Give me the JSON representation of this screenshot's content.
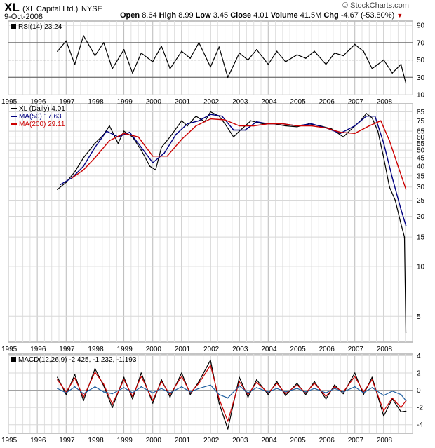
{
  "header": {
    "symbol": "XL",
    "company": "(XL Capital Ltd.)",
    "exchange": "NYSE",
    "date": "9-Oct-2008",
    "logo": "© StockCharts.com",
    "open_label": "Open",
    "open": "8.64",
    "high_label": "High",
    "high": "8.99",
    "low_label": "Low",
    "low": "3.45",
    "close_label": "Close",
    "close": "4.01",
    "volume_label": "Volume",
    "volume": "41.5M",
    "chg_label": "Chg",
    "chg": "-4.67 (-53.80%)",
    "chg_icon": "down-triangle-icon",
    "chg_color": "#b00000"
  },
  "chart_data": [
    {
      "type": "line",
      "panel": "RSI",
      "title": "RSI(14) 23.24",
      "ylim": [
        10,
        95
      ],
      "y_ticks": [
        10,
        30,
        50,
        70,
        90
      ],
      "reference_lines": [
        30,
        50,
        70
      ],
      "x_ticks": [
        "1995",
        "1996",
        "1997",
        "1998",
        "1999",
        "2000",
        "2001",
        "2002",
        "2003",
        "2004",
        "2005",
        "2006",
        "2007",
        "2008"
      ],
      "series": [
        {
          "name": "RSI(14)",
          "color": "#000000",
          "x": [
            1996.7,
            1997.0,
            1997.3,
            1997.6,
            1998.0,
            1998.3,
            1998.6,
            1999.0,
            1999.3,
            1999.6,
            2000.0,
            2000.3,
            2000.6,
            2001.0,
            2001.3,
            2001.6,
            2002.0,
            2002.3,
            2002.6,
            2003.0,
            2003.3,
            2003.6,
            2004.0,
            2004.3,
            2004.6,
            2005.0,
            2005.3,
            2005.6,
            2006.0,
            2006.3,
            2006.6,
            2007.0,
            2007.3,
            2007.6,
            2008.0,
            2008.3,
            2008.6,
            2008.77
          ],
          "values": [
            60,
            72,
            45,
            78,
            55,
            70,
            40,
            62,
            35,
            58,
            48,
            66,
            40,
            60,
            52,
            70,
            42,
            65,
            30,
            58,
            50,
            62,
            45,
            60,
            48,
            56,
            52,
            60,
            45,
            58,
            55,
            68,
            60,
            40,
            50,
            35,
            45,
            23.24
          ]
        }
      ]
    },
    {
      "type": "line",
      "panel": "Price",
      "log_scale": true,
      "ylim": [
        3.5,
        95
      ],
      "y_ticks": [
        5,
        10,
        15,
        20,
        25,
        30,
        35,
        40,
        45,
        50,
        55,
        60,
        65,
        75,
        85
      ],
      "x_ticks": [
        "1995",
        "1996",
        "1997",
        "1998",
        "1999",
        "2000",
        "2001",
        "2002",
        "2003",
        "2004",
        "2005",
        "2006",
        "2007",
        "2008"
      ],
      "series": [
        {
          "name": "XL (Daily) 4.01",
          "color": "#000000",
          "x": [
            1996.7,
            1997.0,
            1997.3,
            1997.6,
            1998.0,
            1998.3,
            1998.5,
            1998.8,
            1999.0,
            1999.3,
            1999.6,
            1999.9,
            2000.1,
            2000.3,
            2000.6,
            2001.0,
            2001.2,
            2001.5,
            2001.8,
            2002.0,
            2002.3,
            2002.5,
            2002.8,
            2003.0,
            2003.4,
            2003.8,
            2004.2,
            2004.6,
            2005.0,
            2005.4,
            2005.8,
            2006.2,
            2006.6,
            2007.0,
            2007.2,
            2007.4,
            2007.6,
            2007.8,
            2008.0,
            2008.2,
            2008.4,
            2008.6,
            2008.72,
            2008.77
          ],
          "values": [
            29,
            32,
            37,
            45,
            55,
            62,
            70,
            55,
            65,
            60,
            50,
            40,
            38,
            52,
            60,
            75,
            70,
            80,
            74,
            85,
            80,
            72,
            60,
            65,
            75,
            72,
            72,
            70,
            69,
            72,
            70,
            67,
            60,
            70,
            75,
            83,
            78,
            65,
            45,
            30,
            25,
            18,
            15,
            4.01
          ]
        },
        {
          "name": "MA(50) 17.63",
          "color": "#000080",
          "x": [
            1996.8,
            1997.2,
            1997.6,
            1998.0,
            1998.4,
            1998.8,
            1999.2,
            1999.6,
            2000.0,
            2000.4,
            2000.8,
            2001.2,
            2001.6,
            2002.0,
            2002.4,
            2002.8,
            2003.2,
            2003.6,
            2004.0,
            2004.5,
            2005.0,
            2005.5,
            2006.0,
            2006.5,
            2007.0,
            2007.4,
            2007.7,
            2008.0,
            2008.3,
            2008.6,
            2008.77
          ],
          "values": [
            31,
            34,
            40,
            52,
            65,
            60,
            64,
            52,
            42,
            48,
            62,
            72,
            75,
            82,
            80,
            66,
            66,
            74,
            72,
            72,
            70,
            72,
            68,
            63,
            70,
            80,
            80,
            55,
            34,
            22,
            17.63
          ]
        },
        {
          "name": "MA(200) 29.11",
          "color": "#cc0000",
          "x": [
            1997.2,
            1997.6,
            1998.0,
            1998.5,
            1999.0,
            1999.5,
            2000.0,
            2000.5,
            2001.0,
            2001.5,
            2002.0,
            2002.5,
            2003.0,
            2003.5,
            2004.0,
            2004.5,
            2005.0,
            2005.5,
            2006.0,
            2006.5,
            2007.0,
            2007.5,
            2007.9,
            2008.2,
            2008.5,
            2008.77
          ],
          "values": [
            34,
            38,
            45,
            57,
            63,
            60,
            46,
            46,
            58,
            70,
            77,
            76,
            70,
            70,
            72,
            72,
            70,
            70,
            68,
            64,
            63,
            70,
            75,
            57,
            40,
            29.11
          ]
        }
      ]
    },
    {
      "type": "line",
      "panel": "MACD",
      "title": "MACD(12,26,9) -2.425, -1.232, -1.193",
      "ylim": [
        -5,
        4.2
      ],
      "y_ticks": [
        -4,
        -2,
        0,
        2,
        4
      ],
      "x_ticks": [
        "1995",
        "1996",
        "1997",
        "1998",
        "1999",
        "2000",
        "2001",
        "2002",
        "2003",
        "2004",
        "2005",
        "2006",
        "2007",
        "2008"
      ],
      "series": [
        {
          "name": "MACD",
          "color": "#000000",
          "x": [
            1996.7,
            1997.0,
            1997.3,
            1997.6,
            1998.0,
            1998.3,
            1998.6,
            1999.0,
            1999.3,
            1999.6,
            2000.0,
            2000.3,
            2000.6,
            2001.0,
            2001.3,
            2001.6,
            2002.0,
            2002.3,
            2002.6,
            2003.0,
            2003.3,
            2003.6,
            2004.0,
            2004.3,
            2004.6,
            2005.0,
            2005.3,
            2005.6,
            2006.0,
            2006.3,
            2006.6,
            2007.0,
            2007.3,
            2007.6,
            2008.0,
            2008.3,
            2008.6,
            2008.77
          ],
          "values": [
            1.5,
            -0.5,
            1.8,
            -1.2,
            2.5,
            0.5,
            -2.0,
            1.5,
            -1.0,
            2.0,
            -1.5,
            1.2,
            -0.8,
            2.0,
            -0.5,
            1.0,
            3.5,
            -1.5,
            -4.5,
            1.5,
            -0.8,
            1.2,
            -0.5,
            1.0,
            -0.6,
            0.8,
            -0.5,
            1.0,
            -1.0,
            0.6,
            -0.4,
            2.0,
            -0.5,
            1.5,
            -3.0,
            -1.0,
            -2.5,
            -2.425
          ]
        },
        {
          "name": "Signal",
          "color": "#cc0000",
          "x": [
            1996.7,
            1997.0,
            1997.3,
            1997.6,
            1998.0,
            1998.3,
            1998.6,
            1999.0,
            1999.3,
            1999.6,
            2000.0,
            2000.3,
            2000.6,
            2001.0,
            2001.3,
            2001.6,
            2002.0,
            2002.3,
            2002.6,
            2003.0,
            2003.3,
            2003.6,
            2004.0,
            2004.3,
            2004.6,
            2005.0,
            2005.3,
            2005.6,
            2006.0,
            2006.3,
            2006.6,
            2007.0,
            2007.3,
            2007.6,
            2008.0,
            2008.3,
            2008.6,
            2008.77
          ],
          "values": [
            1.2,
            -0.2,
            1.4,
            -0.8,
            2.1,
            0.7,
            -1.6,
            1.2,
            -0.7,
            1.6,
            -1.2,
            1.0,
            -0.5,
            1.6,
            -0.3,
            0.8,
            2.9,
            -1.0,
            -3.6,
            1.0,
            -0.5,
            0.9,
            -0.3,
            0.8,
            -0.4,
            0.6,
            -0.3,
            0.8,
            -0.7,
            0.4,
            -0.2,
            1.6,
            -0.2,
            1.2,
            -2.4,
            -0.9,
            -2.0,
            -1.232
          ]
        },
        {
          "name": "Histogram",
          "color": "#1f5fa0",
          "x": [
            1996.7,
            1997.0,
            1997.3,
            1997.6,
            1998.0,
            1998.3,
            1998.6,
            1999.0,
            1999.3,
            1999.6,
            2000.0,
            2000.3,
            2000.6,
            2001.0,
            2001.3,
            2001.6,
            2002.0,
            2002.3,
            2002.6,
            2003.0,
            2003.3,
            2003.6,
            2004.0,
            2004.3,
            2004.6,
            2005.0,
            2005.3,
            2005.6,
            2006.0,
            2006.3,
            2006.6,
            2007.0,
            2007.3,
            2007.6,
            2008.0,
            2008.3,
            2008.6,
            2008.77
          ],
          "values": [
            0.2,
            -0.3,
            0.4,
            -0.4,
            0.4,
            -0.2,
            -0.4,
            0.3,
            -0.3,
            0.4,
            -0.3,
            0.2,
            -0.3,
            0.4,
            -0.2,
            0.2,
            0.6,
            -0.5,
            -0.9,
            0.5,
            -0.3,
            0.3,
            -0.2,
            0.2,
            -0.2,
            0.2,
            -0.2,
            0.2,
            -0.3,
            0.2,
            -0.2,
            0.4,
            -0.3,
            0.3,
            -0.6,
            -0.1,
            -0.5,
            -1.193
          ]
        }
      ]
    }
  ]
}
